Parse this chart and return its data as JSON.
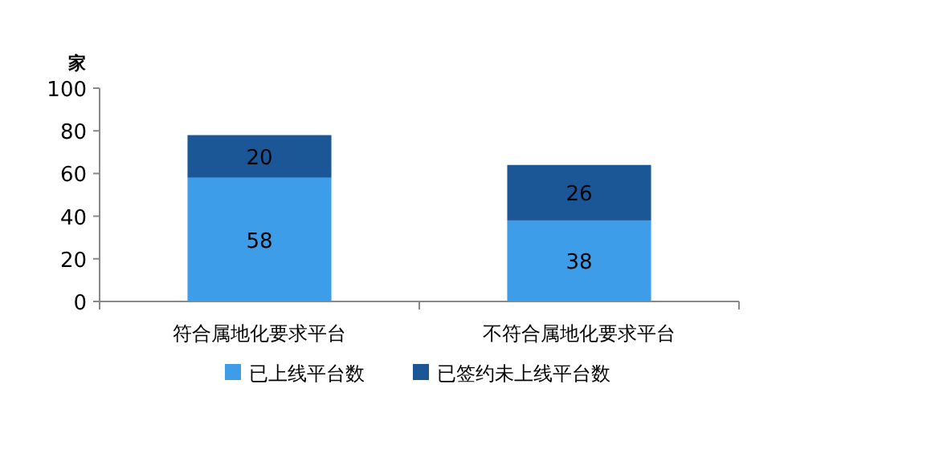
{
  "chart_data": {
    "type": "bar",
    "stacked": true,
    "ylabel": "家",
    "categories": [
      "符合属地化要求平台",
      "不符合属地化要求平台"
    ],
    "series": [
      {
        "name": "已上线平台数",
        "color": "#3d9de8",
        "values": [
          58,
          38
        ]
      },
      {
        "name": "已签约未上线平台数",
        "color": "#1b5797",
        "values": [
          20,
          26
        ]
      }
    ],
    "ylim": [
      0,
      100
    ],
    "yticks": [
      0,
      20,
      40,
      60,
      80,
      100
    ],
    "data_labels": true,
    "legend": "bottom"
  }
}
